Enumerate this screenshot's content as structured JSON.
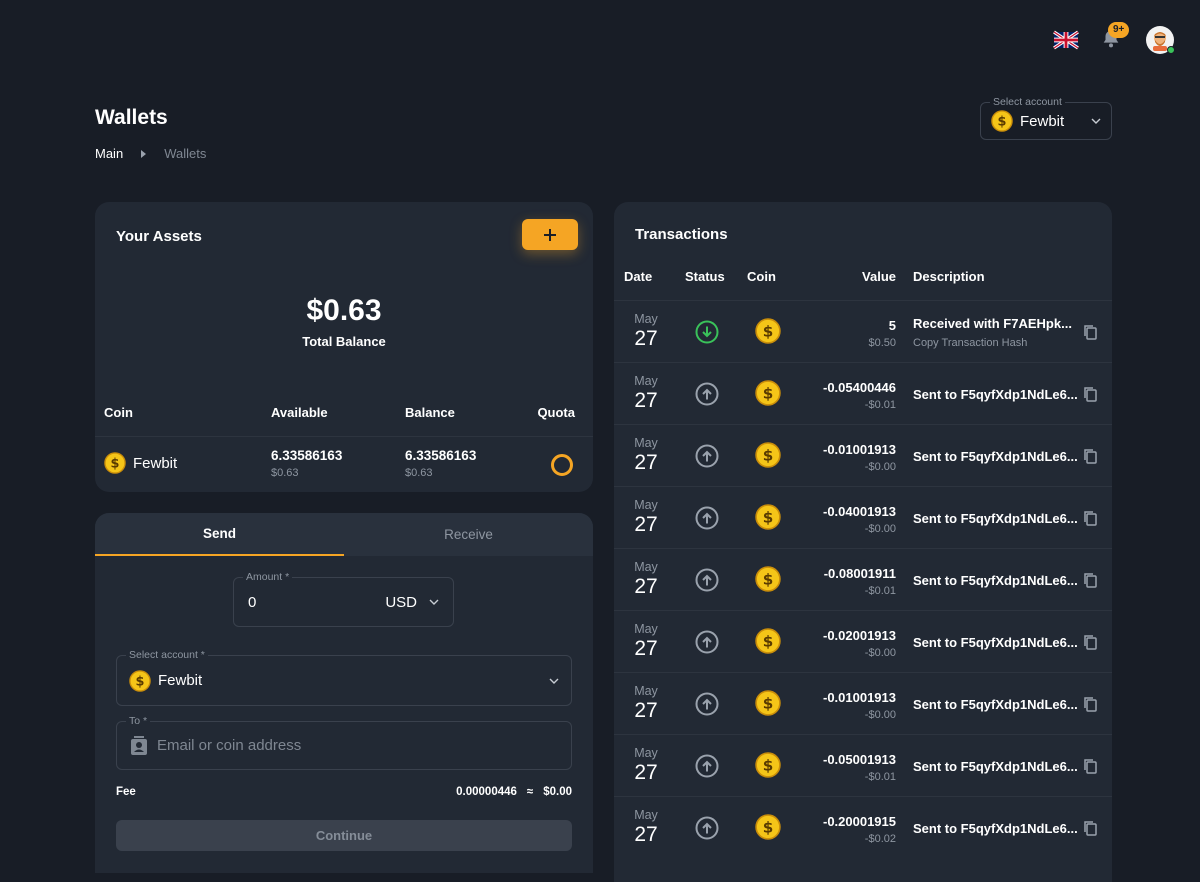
{
  "header": {
    "language_icon": "uk-flag-icon",
    "notifications_badge": "9+",
    "avatar_icon": "user-avatar"
  },
  "page": {
    "title": "Wallets",
    "breadcrumb": [
      "Main",
      "Wallets"
    ]
  },
  "account_selector": {
    "label": "Select account",
    "value": "Fewbit"
  },
  "assets": {
    "title": "Your Assets",
    "add_button_icon": "plus-icon",
    "total_balance": "$0.63",
    "total_balance_label": "Total Balance",
    "columns": [
      "Coin",
      "Available",
      "Balance",
      "Quota"
    ],
    "rows": [
      {
        "coin": "Fewbit",
        "available": "6.33586163",
        "available_usd": "$0.63",
        "balance": "6.33586163",
        "balance_usd": "$0.63"
      }
    ]
  },
  "send_form": {
    "tabs": [
      "Send",
      "Receive"
    ],
    "amount_label": "Amount *",
    "amount_value": "0",
    "currency": "USD",
    "account_label": "Select account *",
    "account_value": "Fewbit",
    "to_label": "To *",
    "to_placeholder": "Email or coin address",
    "fee_label": "Fee",
    "fee_value": "0.00000446",
    "fee_approx_symbol": "≈",
    "fee_usd": "$0.00",
    "continue_label": "Continue"
  },
  "transactions": {
    "title": "Transactions",
    "columns": [
      "Date",
      "Status",
      "Coin",
      "Value",
      "Description"
    ],
    "rows": [
      {
        "month": "May",
        "day": "27",
        "status": "received",
        "value": "5",
        "value_usd": "$0.50",
        "description": "Received with F7AEHpk...",
        "hint": "Copy Transaction Hash"
      },
      {
        "month": "May",
        "day": "27",
        "status": "sent",
        "value": "-0.05400446",
        "value_usd": "-$0.01",
        "description": "Sent to F5qyfXdp1NdLe6...",
        "hint": ""
      },
      {
        "month": "May",
        "day": "27",
        "status": "sent",
        "value": "-0.01001913",
        "value_usd": "-$0.00",
        "description": "Sent to F5qyfXdp1NdLe6...",
        "hint": ""
      },
      {
        "month": "May",
        "day": "27",
        "status": "sent",
        "value": "-0.04001913",
        "value_usd": "-$0.00",
        "description": "Sent to F5qyfXdp1NdLe6...",
        "hint": ""
      },
      {
        "month": "May",
        "day": "27",
        "status": "sent",
        "value": "-0.08001911",
        "value_usd": "-$0.01",
        "description": "Sent to F5qyfXdp1NdLe6...",
        "hint": ""
      },
      {
        "month": "May",
        "day": "27",
        "status": "sent",
        "value": "-0.02001913",
        "value_usd": "-$0.00",
        "description": "Sent to F5qyfXdp1NdLe6...",
        "hint": ""
      },
      {
        "month": "May",
        "day": "27",
        "status": "sent",
        "value": "-0.01001913",
        "value_usd": "-$0.00",
        "description": "Sent to F5qyfXdp1NdLe6...",
        "hint": ""
      },
      {
        "month": "May",
        "day": "27",
        "status": "sent",
        "value": "-0.05001913",
        "value_usd": "-$0.01",
        "description": "Sent to F5qyfXdp1NdLe6...",
        "hint": ""
      },
      {
        "month": "May",
        "day": "27",
        "status": "sent",
        "value": "-0.20001915",
        "value_usd": "-$0.02",
        "description": "Sent to F5qyfXdp1NdLe6...",
        "hint": ""
      }
    ]
  },
  "colors": {
    "background": "#181d26",
    "card": "#222934",
    "accent": "#f5a524",
    "received": "#3ac25a",
    "muted": "#8e96a1"
  }
}
